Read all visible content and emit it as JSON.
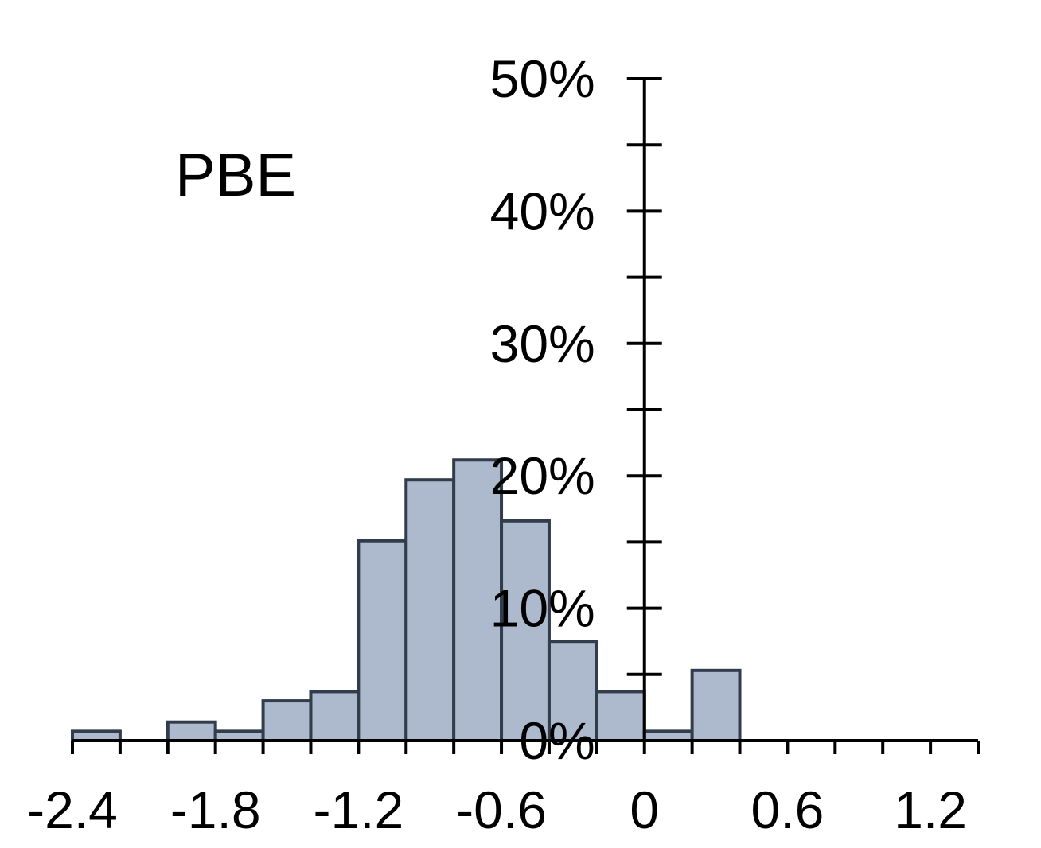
{
  "chart_data": {
    "type": "bar",
    "title": "",
    "annotation": "PBE",
    "xlabel": "",
    "ylabel": "",
    "bin_width": 0.2,
    "bins": [
      {
        "start": -2.4,
        "end": -2.2,
        "value": 0.7
      },
      {
        "start": -2.2,
        "end": -2.0,
        "value": 0
      },
      {
        "start": -2.0,
        "end": -1.8,
        "value": 1.4
      },
      {
        "start": -1.8,
        "end": -1.6,
        "value": 0.7
      },
      {
        "start": -1.6,
        "end": -1.4,
        "value": 3.0
      },
      {
        "start": -1.4,
        "end": -1.2,
        "value": 3.7
      },
      {
        "start": -1.2,
        "end": -1.0,
        "value": 15.1
      },
      {
        "start": -1.0,
        "end": -0.8,
        "value": 19.7
      },
      {
        "start": -0.8,
        "end": -0.6,
        "value": 21.2
      },
      {
        "start": -0.6,
        "end": -0.4,
        "value": 16.6
      },
      {
        "start": -0.4,
        "end": -0.2,
        "value": 7.5
      },
      {
        "start": -0.2,
        "end": 0.0,
        "value": 3.7
      },
      {
        "start": 0.0,
        "end": 0.2,
        "value": 0.7
      },
      {
        "start": 0.2,
        "end": 0.4,
        "value": 5.3
      }
    ],
    "xlim": [
      -2.4,
      1.4
    ],
    "ylim": [
      0,
      50
    ],
    "x_ticks": [
      -2.4,
      -1.8,
      -1.2,
      -0.6,
      0,
      0.6,
      1.2
    ],
    "x_tick_labels": [
      "-2.4",
      "-1.8",
      "-1.2",
      "-0.6",
      "0",
      "0.6",
      "1.2"
    ],
    "y_ticks": [
      0,
      10,
      20,
      30,
      40,
      50
    ],
    "y_tick_labels": [
      "0%",
      "10%",
      "20%",
      "30%",
      "40%",
      "50%"
    ],
    "y_minor_step": 5,
    "x_minor_step": 0.2,
    "grid": false,
    "legend": "none",
    "colors": {
      "bar_fill": "#adb9cc",
      "bar_stroke": "#323d4c",
      "axis": "#000000"
    }
  }
}
